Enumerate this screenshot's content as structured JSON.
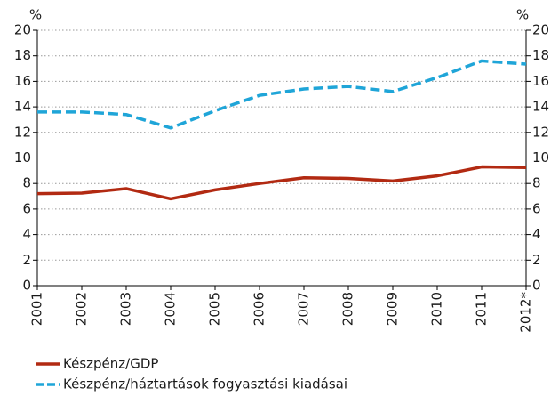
{
  "chart_data": {
    "type": "line",
    "ylabel": "%",
    "y2label": "%",
    "categories": [
      "2001",
      "2002",
      "2003",
      "2004",
      "2005",
      "2006",
      "2007",
      "2008",
      "2009",
      "2010",
      "2011",
      "2012*"
    ],
    "series": [
      {
        "name": "Készpénz/GDP",
        "color": "#b22a12",
        "dash": false,
        "values": [
          7.2,
          7.25,
          7.6,
          6.8,
          7.5,
          8.0,
          8.45,
          8.4,
          8.2,
          8.6,
          9.3,
          9.25
        ]
      },
      {
        "name": "Készpénz/háztartások fogyasztási kiadásai",
        "color": "#1fa5d8",
        "dash": true,
        "values": [
          13.6,
          13.6,
          13.4,
          12.35,
          13.7,
          14.9,
          15.4,
          15.6,
          15.2,
          16.3,
          17.6,
          17.35
        ]
      }
    ],
    "ylim": [
      0,
      20
    ],
    "yticks": [
      0,
      2,
      4,
      6,
      8,
      10,
      12,
      14,
      16,
      18,
      20
    ],
    "y2lim": [
      0,
      20
    ],
    "y2ticks": [
      0,
      2,
      4,
      6,
      8,
      10,
      12,
      14,
      16,
      18,
      20
    ],
    "grid": true
  }
}
